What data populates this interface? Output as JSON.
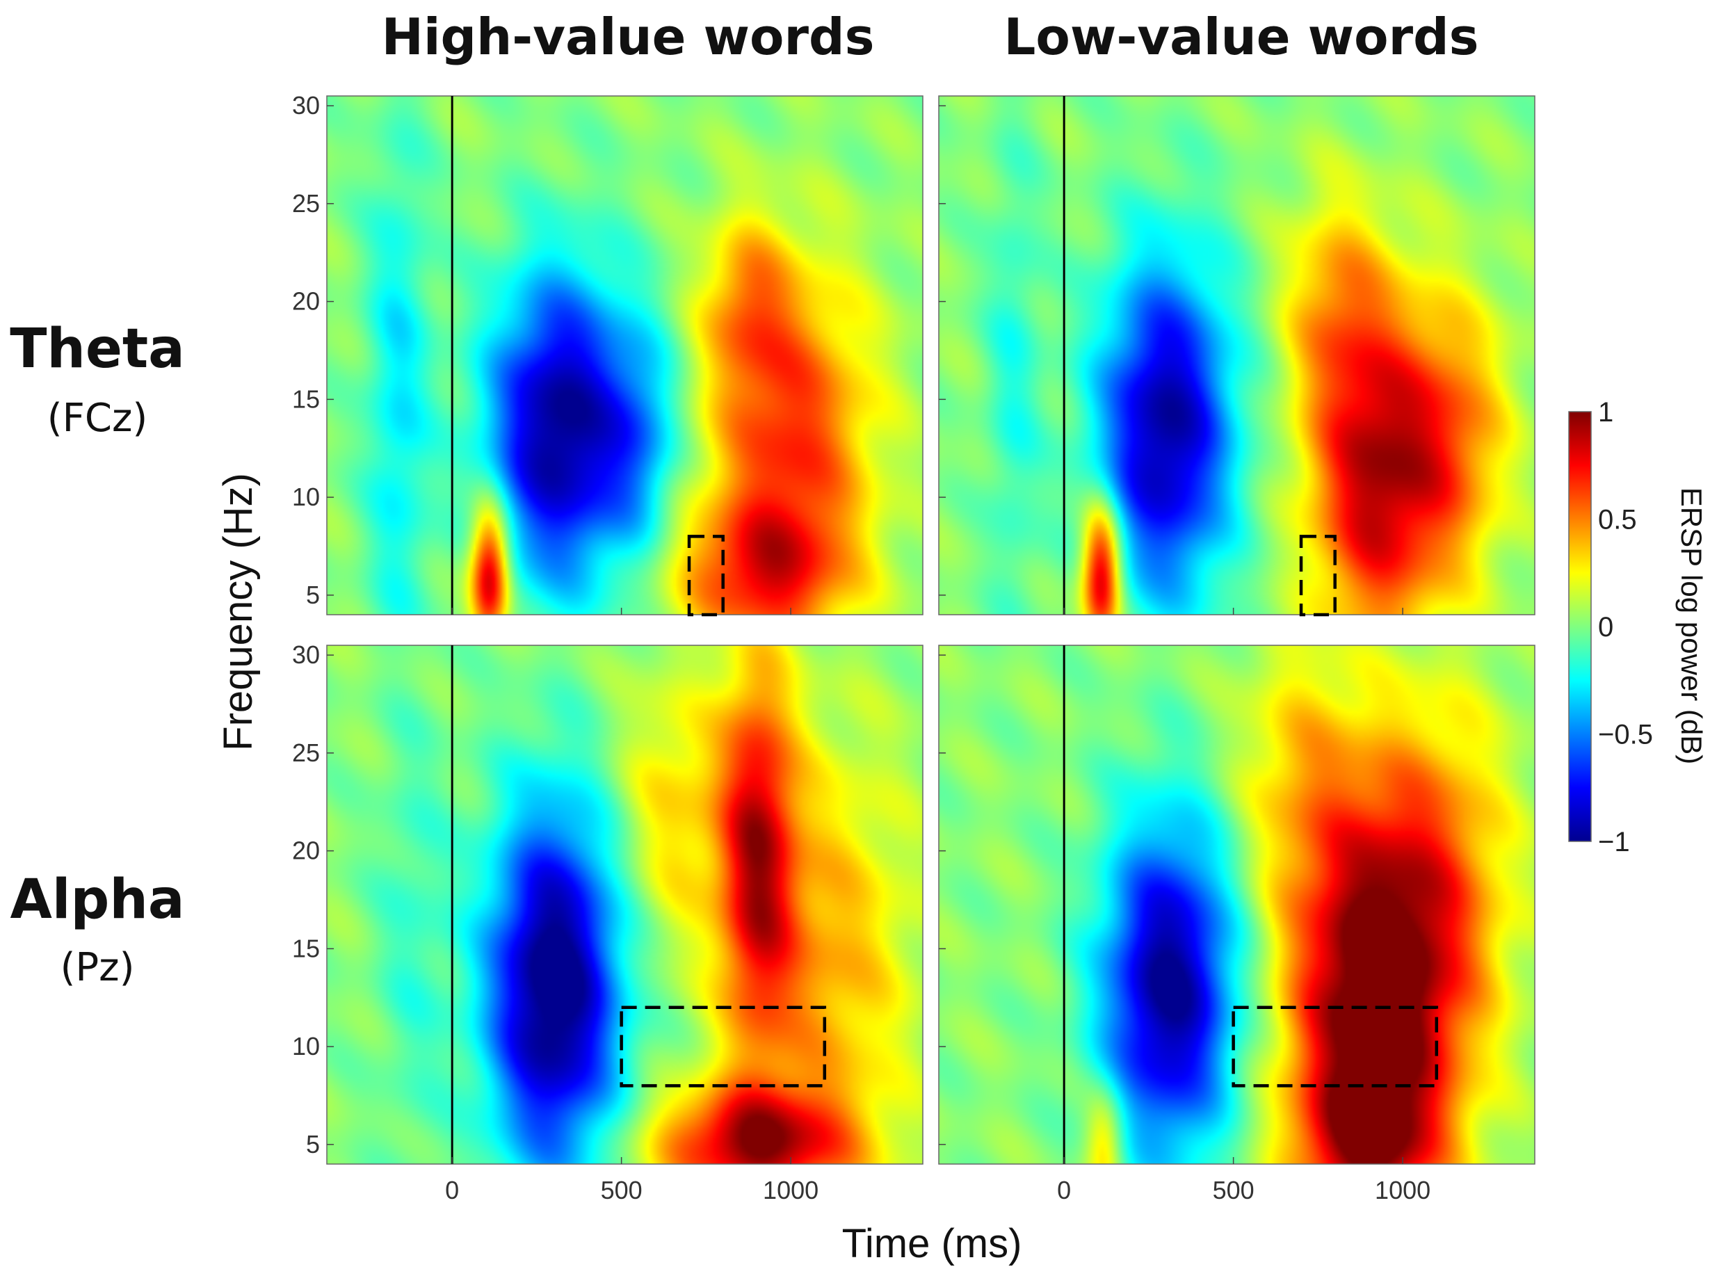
{
  "chart_data": [
    {
      "type": "heatmap",
      "column_title": "High-value words",
      "row_title": "Theta",
      "row_subtitle": "(FCz)",
      "xlim": [
        -370,
        1390
      ],
      "ylim": [
        4,
        30.5
      ],
      "roi": {
        "t0": 700,
        "t1": 800,
        "f0": 4,
        "f1": 8
      },
      "blobs": [
        {
          "t": 320,
          "f": 13.5,
          "st": 150,
          "sf": 5.5,
          "a": -1.05
        },
        {
          "t": 560,
          "f": 13,
          "st": 80,
          "sf": 4,
          "a": -0.35
        },
        {
          "t": 110,
          "f": 6,
          "st": 40,
          "sf": 2.5,
          "a": 0.95
        },
        {
          "t": 1000,
          "f": 13,
          "st": 170,
          "sf": 6,
          "a": 0.65
        },
        {
          "t": 900,
          "f": 6,
          "st": 180,
          "sf": 2.5,
          "a": 0.55
        },
        {
          "t": 870,
          "f": 20,
          "st": 90,
          "sf": 3,
          "a": 0.35
        },
        {
          "t": -160,
          "f": 15,
          "st": 70,
          "sf": 10,
          "a": -0.3
        }
      ]
    },
    {
      "type": "heatmap",
      "column_title": "Low-value words",
      "row_title": "Theta",
      "row_subtitle": "(FCz)",
      "xlim": [
        -370,
        1390
      ],
      "ylim": [
        4,
        30.5
      ],
      "roi": {
        "t0": 700,
        "t1": 800,
        "f0": 4,
        "f1": 8
      },
      "blobs": [
        {
          "t": 300,
          "f": 13.5,
          "st": 140,
          "sf": 6,
          "a": -1.0
        },
        {
          "t": 110,
          "f": 6,
          "st": 40,
          "sf": 2.5,
          "a": 0.95
        },
        {
          "t": 920,
          "f": 11,
          "st": 140,
          "sf": 6,
          "a": 0.85
        },
        {
          "t": 1150,
          "f": 13,
          "st": 120,
          "sf": 5,
          "a": 0.45
        },
        {
          "t": 800,
          "f": 20,
          "st": 110,
          "sf": 4,
          "a": 0.35
        },
        {
          "t": -150,
          "f": 16,
          "st": 60,
          "sf": 9,
          "a": -0.2
        }
      ]
    },
    {
      "type": "heatmap",
      "column_title": "High-value words",
      "row_title": "Alpha",
      "row_subtitle": "(Pz)",
      "xlim": [
        -370,
        1390
      ],
      "ylim": [
        4,
        30.5
      ],
      "roi": {
        "t0": 500,
        "t1": 1100,
        "f0": 8,
        "f1": 12
      },
      "blobs": [
        {
          "t": 300,
          "f": 13,
          "st": 140,
          "sf": 6.5,
          "a": -1.15
        },
        {
          "t": 900,
          "f": 20,
          "st": 80,
          "sf": 7,
          "a": 0.75
        },
        {
          "t": 880,
          "f": 5,
          "st": 200,
          "sf": 2,
          "a": 0.85
        },
        {
          "t": 1100,
          "f": 14,
          "st": 180,
          "sf": 8,
          "a": 0.4
        },
        {
          "t": 650,
          "f": 22,
          "st": 120,
          "sf": 5,
          "a": 0.3
        },
        {
          "t": -120,
          "f": 16,
          "st": 80,
          "sf": 9,
          "a": -0.15
        }
      ]
    },
    {
      "type": "heatmap",
      "column_title": "Low-value words",
      "row_title": "Alpha",
      "row_subtitle": "(Pz)",
      "xlim": [
        -370,
        1390
      ],
      "ylim": [
        4,
        30.5
      ],
      "roi": {
        "t0": 500,
        "t1": 1100,
        "f0": 8,
        "f1": 12
      },
      "blobs": [
        {
          "t": 310,
          "f": 13,
          "st": 140,
          "sf": 6,
          "a": -1.05
        },
        {
          "t": 900,
          "f": 12,
          "st": 170,
          "sf": 7,
          "a": 1.05
        },
        {
          "t": 900,
          "f": 5,
          "st": 150,
          "sf": 2.5,
          "a": 0.5
        },
        {
          "t": 1100,
          "f": 18,
          "st": 160,
          "sf": 7,
          "a": 0.45
        },
        {
          "t": 700,
          "f": 24,
          "st": 140,
          "sf": 5,
          "a": 0.3
        },
        {
          "t": 120,
          "f": 5,
          "st": 40,
          "sf": 2,
          "a": 0.4
        }
      ]
    }
  ],
  "axes": {
    "xlabel": "Time (ms)",
    "ylabel": "Frequency (Hz)",
    "xticks": [
      0,
      500,
      1000
    ],
    "yticks": [
      5,
      10,
      15,
      20,
      25,
      30
    ],
    "xtick_labels": [
      "0",
      "500",
      "1000"
    ],
    "ytick_labels": [
      "5",
      "10",
      "15",
      "20",
      "25",
      "30"
    ]
  },
  "colorbar": {
    "label": "ERSP log power (dB)",
    "range": [
      -1,
      1
    ],
    "ticks": [
      1,
      0.5,
      0,
      -0.5,
      -1
    ],
    "tick_labels": [
      "1",
      "0.5",
      "0",
      "−0.5",
      "−1"
    ]
  },
  "colors": {
    "cmap": [
      "#00008f",
      "#0000ff",
      "#0080ff",
      "#00ffff",
      "#80ff80",
      "#ffff00",
      "#ff8000",
      "#ff0000",
      "#800000"
    ],
    "background_value": 0.02
  },
  "labels": {
    "col_high": "High-value words",
    "col_low": "Low-value words",
    "row_theta": "Theta",
    "row_theta_sub": "(FCz)",
    "row_alpha": "Alpha",
    "row_alpha_sub": "(Pz)"
  }
}
